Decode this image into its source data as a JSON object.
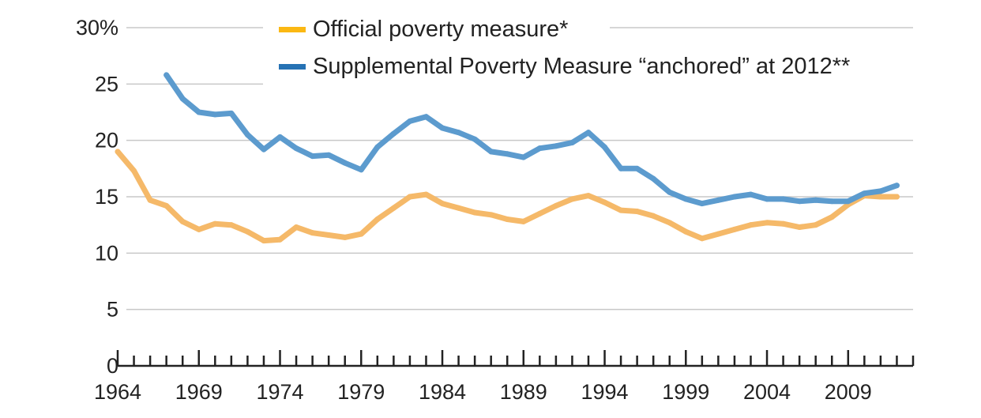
{
  "chart_data": {
    "type": "line",
    "title": "",
    "xlabel": "",
    "ylabel": "",
    "x": [
      1964,
      1965,
      1966,
      1967,
      1968,
      1969,
      1970,
      1971,
      1972,
      1973,
      1974,
      1975,
      1976,
      1977,
      1978,
      1979,
      1980,
      1981,
      1982,
      1983,
      1984,
      1985,
      1986,
      1987,
      1988,
      1989,
      1990,
      1991,
      1992,
      1993,
      1994,
      1995,
      1996,
      1997,
      1998,
      1999,
      2000,
      2001,
      2002,
      2003,
      2004,
      2005,
      2006,
      2007,
      2008,
      2009,
      2010,
      2011,
      2012
    ],
    "xlim": [
      1964,
      2013
    ],
    "xticks": [
      1964,
      1969,
      1974,
      1979,
      1984,
      1989,
      1994,
      1999,
      2004,
      2009
    ],
    "xtick_labels": [
      "1964",
      "1969",
      "1974",
      "1979",
      "1984",
      "1989",
      "1994",
      "1999",
      "2004",
      "2009"
    ],
    "ylim": [
      0,
      30
    ],
    "yticks": [
      0,
      5,
      10,
      15,
      20,
      25,
      30
    ],
    "ytick_labels": [
      "0",
      "5",
      "10",
      "15",
      "20",
      "25",
      "30%"
    ],
    "grid": true,
    "legend_position": "top",
    "series": [
      {
        "name": "Official poverty measure*",
        "color": "#F5B969",
        "legend_color": "#FBB813",
        "values": [
          19.0,
          17.3,
          14.7,
          14.2,
          12.8,
          12.1,
          12.6,
          12.5,
          11.9,
          11.1,
          11.2,
          12.3,
          11.8,
          11.6,
          11.4,
          11.7,
          13.0,
          14.0,
          15.0,
          15.2,
          14.4,
          14.0,
          13.6,
          13.4,
          13.0,
          12.8,
          13.5,
          14.2,
          14.8,
          15.1,
          14.5,
          13.8,
          13.7,
          13.3,
          12.7,
          11.9,
          11.3,
          11.7,
          12.1,
          12.5,
          12.7,
          12.6,
          12.3,
          12.5,
          13.2,
          14.3,
          15.1,
          15.0,
          15.0
        ]
      },
      {
        "name": "Supplemental Poverty Measure “anchored” at 2012**",
        "color": "#5C9BCE",
        "legend_color": "#2672B4",
        "values": [
          null,
          null,
          null,
          25.8,
          23.7,
          22.5,
          22.3,
          22.4,
          20.5,
          19.2,
          20.3,
          19.3,
          18.6,
          18.7,
          18.0,
          17.4,
          19.4,
          20.6,
          21.7,
          22.1,
          21.1,
          20.7,
          20.1,
          19.0,
          18.8,
          18.5,
          19.3,
          19.5,
          19.8,
          20.7,
          19.4,
          17.5,
          17.5,
          16.6,
          15.4,
          14.8,
          14.4,
          14.7,
          15.0,
          15.2,
          14.8,
          14.8,
          14.6,
          14.7,
          14.6,
          14.6,
          15.3,
          15.5,
          16.0
        ]
      }
    ]
  }
}
